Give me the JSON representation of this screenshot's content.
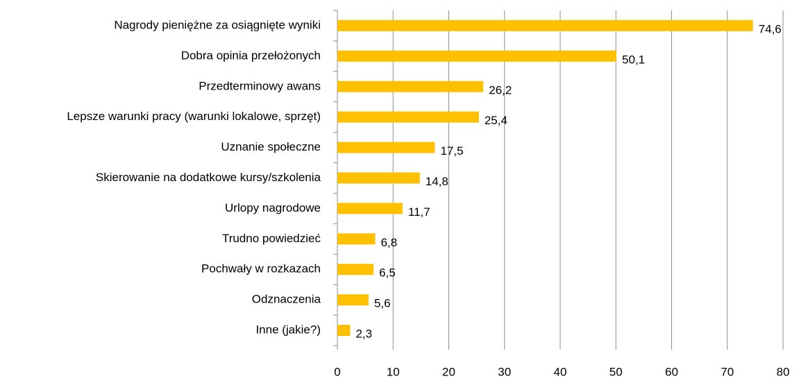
{
  "chart_data": {
    "type": "bar",
    "orientation": "horizontal",
    "categories": [
      "Nagrody pieniężne za osiągnięte wyniki",
      "Dobra opinia przełożonych",
      "Przedterminowy awans",
      "Lepsze warunki pracy (warunki lokalowe, sprzęt)",
      "Uznanie społeczne",
      "Skierowanie na dodatkowe kursy/szkolenia",
      "Urlopy nagrodowe",
      "Trudno powiedzieć",
      "Pochwały w rozkazach",
      "Odznaczenia",
      "Inne (jakie?)"
    ],
    "values": [
      74.6,
      50.1,
      26.2,
      25.4,
      17.5,
      14.8,
      11.7,
      6.8,
      6.5,
      5.6,
      2.3
    ],
    "value_labels": [
      "74,6",
      "50,1",
      "26,2",
      "25,4",
      "17,5",
      "14,8",
      "11,7",
      "6,8",
      "6,5",
      "5,6",
      "2,3"
    ],
    "color": "#ffc000",
    "xlim": [
      0,
      80
    ],
    "xticks": [
      0,
      10,
      20,
      30,
      40,
      50,
      60,
      70,
      80
    ],
    "grid": true
  }
}
